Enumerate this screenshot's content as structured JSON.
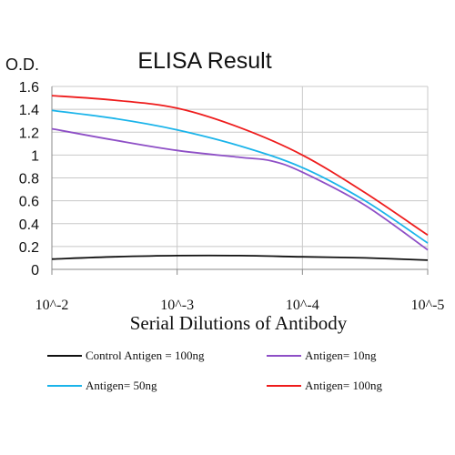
{
  "chart_data": {
    "type": "line",
    "title": "ELISA Result",
    "ylabel": "O.D.",
    "xlabel": "Serial Dilutions of Antibody",
    "x_categories": [
      "10^-2",
      "10^-3",
      "10^-4",
      "10^-5"
    ],
    "x_scale": "log",
    "x_values": [
      0.01,
      0.001,
      0.0001,
      1e-05
    ],
    "ylim": [
      0,
      1.6
    ],
    "y_ticks": [
      0,
      0.2,
      0.4,
      0.6,
      0.8,
      1,
      1.2,
      1.4,
      1.6
    ],
    "grid": true,
    "legend_placement": "bottom",
    "series": [
      {
        "name": "Control Antigen = 100ng",
        "color": "#111111",
        "points": [
          [
            0,
            0.09
          ],
          [
            0.5,
            0.11
          ],
          [
            1,
            0.12
          ],
          [
            1.5,
            0.12
          ],
          [
            2,
            0.11
          ],
          [
            2.5,
            0.1
          ],
          [
            3,
            0.08
          ]
        ]
      },
      {
        "name": "Antigen= 10ng",
        "color": "#8e4fc6",
        "points": [
          [
            0,
            1.23
          ],
          [
            0.5,
            1.13
          ],
          [
            1,
            1.04
          ],
          [
            1.5,
            0.98
          ],
          [
            1.75,
            0.95
          ],
          [
            2,
            0.85
          ],
          [
            2.5,
            0.56
          ],
          [
            3,
            0.17
          ]
        ]
      },
      {
        "name": "Antigen= 50ng",
        "color": "#1ab4ea",
        "points": [
          [
            0,
            1.39
          ],
          [
            0.5,
            1.32
          ],
          [
            1,
            1.22
          ],
          [
            1.5,
            1.08
          ],
          [
            2,
            0.89
          ],
          [
            2.5,
            0.6
          ],
          [
            3,
            0.23
          ]
        ]
      },
      {
        "name": "Antigen= 100ng",
        "color": "#ee1c1c",
        "points": [
          [
            0,
            1.52
          ],
          [
            0.5,
            1.48
          ],
          [
            1,
            1.41
          ],
          [
            1.5,
            1.24
          ],
          [
            2,
            1.0
          ],
          [
            2.5,
            0.67
          ],
          [
            3,
            0.3
          ]
        ]
      }
    ]
  }
}
